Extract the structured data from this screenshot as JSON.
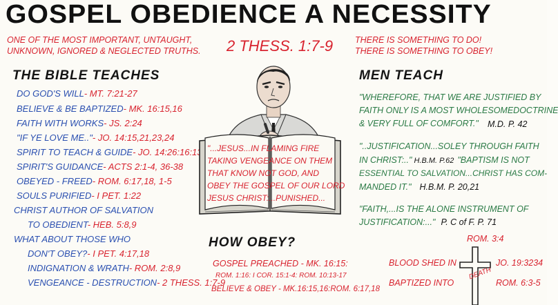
{
  "title": "GOSPEL OBEDIENCE A NECESSITY",
  "intro": {
    "line1": "ONE OF THE MOST IMPORTANT, UNTAUGHT,",
    "line2": "UNKNOWN, IGNORED & NEGLECTED TRUTHS."
  },
  "scripture_ref": "2 THESS. 1:7-9",
  "something": {
    "line1": "THERE IS SOMETHING TO DO!",
    "line2": "THERE IS SOMETHING TO OBEY!"
  },
  "bible": {
    "heading": "THE BIBLE TEACHES",
    "items": [
      {
        "text": "DO GOD'S WILL",
        "ref": "- MT. 7:21-27"
      },
      {
        "text": "BELIEVE & BE BAPTIZED",
        "ref": "- MK. 16:15,16"
      },
      {
        "text": "FAITH WITH WORKS",
        "ref": "- JS. 2:24"
      },
      {
        "text": "\"IF YE LOVE ME..\"",
        "ref": "- JO. 14:15,21,23,24"
      },
      {
        "text": "SPIRIT TO TEACH & GUIDE",
        "ref": "- JO. 14:26:16:13"
      },
      {
        "text": "SPIRIT'S GUIDANCE",
        "ref": "- ACTS 2:1-4, 36-38"
      },
      {
        "text": "OBEYED - FREED",
        "ref": "- ROM. 6:17,18, 1-5"
      },
      {
        "text": "SOULS PURIFIED",
        "ref": "- I PET. 1:22"
      },
      {
        "text": "CHRIST AUTHOR OF SALVATION",
        "ref": ""
      },
      {
        "text": "TO OBEDIENT",
        "ref": "- HEB. 5:8,9"
      },
      {
        "text": "WHAT ABOUT THOSE WHO",
        "ref": ""
      },
      {
        "text": "DON'T OBEY?",
        "ref": "- I PET. 4:17,18"
      },
      {
        "text": "INDIGNATION & WRATH",
        "ref": "- ROM. 2:8,9"
      },
      {
        "text": "VENGEANCE - DESTRUCTION",
        "ref": "- 2 THESS. 1:7-9"
      }
    ]
  },
  "book": {
    "line1": "\"...JESUS...IN FLAMING FIRE",
    "line2": "TAKING VENGEANCE ON THEM",
    "line3": "THAT KNOW NOT GOD, AND",
    "line4": "OBEY THE GOSPEL OF OUR LORD",
    "line5": "JESUS CHRIST:...PUNISHED..."
  },
  "how": {
    "heading": "HOW OBEY?",
    "line1": "GOSPEL PREACHED - MK. 16:15:",
    "line2": "ROM. 1:16: I COR. 15:1-4: ROM. 10:13-17",
    "line3": "BELIEVE & OBEY - MK.16:15,16:ROM. 6:17,18"
  },
  "men": {
    "heading": "MEN TEACH",
    "q1": {
      "line1": "\"WHEREFORE, THAT WE ARE JUSTIFIED BY",
      "line2": "FAITH ONLY IS A MOST WHOLESOMEDOCTRINE",
      "line3": "& VERY FULL OF COMFORT.\"",
      "source": "M.D. P. 42"
    },
    "q2": {
      "line1": "\"..JUSTIFICATION...SOLEY THROUGH FAITH",
      "line2a": "IN CHRIST:..\"",
      "source1": "H.B.M. P.62",
      "line2b": "\"BAPTISM IS NOT",
      "line3": "ESSENTIAL TO SALVATION...CHRIST HAS COM-",
      "line4": "MANDED IT.\"",
      "source2": "H.B.M. P. 20,21"
    },
    "q3": {
      "line1": "\"FAITH,...IS THE ALONE INSTRUMENT OF",
      "line2": "JUSTIFICATION:...\"",
      "source": "P. C of F. P. 71"
    },
    "rom": "ROM. 3:4"
  },
  "blood": {
    "line1": "BLOOD SHED IN",
    "ref1": "JO. 19:3234",
    "line2": "BAPTIZED INTO",
    "ref2": "ROM. 6:3-5",
    "cross_word": "DEATH"
  },
  "colors": {
    "red": "#d8232f",
    "blue": "#2a4fb0",
    "green": "#2a7a45",
    "black": "#141414"
  }
}
